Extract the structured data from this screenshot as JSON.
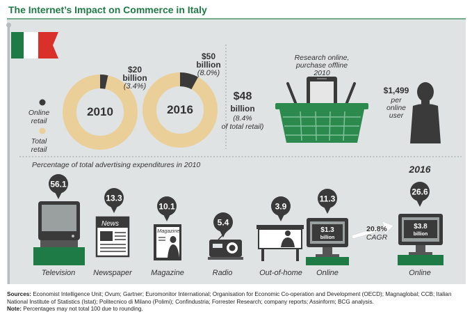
{
  "title": "The Internet’s Impact on Commerce in Italy",
  "colors": {
    "green": "#1e7b45",
    "tan": "#ebcf99",
    "dark": "#3a3a3a",
    "red": "#d9302a",
    "chart_bg": "#dfe3e3"
  },
  "chart_data": [
    {
      "type": "pie",
      "title": "2010",
      "series": [
        {
          "name": "Online retail",
          "value": 3.4
        },
        {
          "name": "Total retail",
          "value": 96.6
        }
      ],
      "annotation_value": "$20",
      "annotation_unit": "billion",
      "annotation_share": "(3.4%)"
    },
    {
      "type": "pie",
      "title": "2016",
      "series": [
        {
          "name": "Online retail",
          "value": 8.0
        },
        {
          "name": "Total retail",
          "value": 92.0
        }
      ],
      "annotation_value": "$50",
      "annotation_unit": "billion",
      "annotation_share": "(8.0%)"
    },
    {
      "type": "bar",
      "title": "Percentage of total advertising expenditures in 2010",
      "categories": [
        "Television",
        "Newspaper",
        "Magazine",
        "Radio",
        "Out-of-home",
        "Online"
      ],
      "values": [
        56.1,
        13.3,
        10.1,
        5.4,
        3.9,
        11.3
      ],
      "value_labels": [
        "56.1",
        "13.3",
        "10.1",
        "5.4",
        "3.9",
        "11.3"
      ],
      "online_spend_2010": "$1.3",
      "online_2016": {
        "year": "2016",
        "category": "Online",
        "value": 26.6,
        "value_label": "26.6",
        "spend": "$3.8"
      },
      "cagr": "20.8%",
      "cagr_label": "CAGR",
      "unit": "billion"
    }
  ],
  "legend": {
    "online": "Online retail",
    "total": "Total retail"
  },
  "ropo": {
    "title": "Research online, purchase offline",
    "year": "2010",
    "value": "$48",
    "unit": "billion",
    "share": "(8.4% of total retail)"
  },
  "per_user": {
    "value": "$1,499",
    "line1": "per",
    "line2": "online",
    "line3": "user"
  },
  "icons": {
    "newspaper": "News",
    "magazine": "Magazine"
  },
  "footer": {
    "sources_label": "Sources:",
    "sources_text": "Economist Intelligence Unit; Ovum; Gartner; Euromonitor International; Organisation for Economic Co-operation and Development (OECD); Magnaglobal; CCB; Italian National Institute of Statistics (Istat); Politecnico di Milano (Polimi); Confindustria; Forrester Research; company reports; Assinform; BCG analysis.",
    "note_label": "Note:",
    "note_text": "Percentages may not total 100 due to rounding."
  }
}
